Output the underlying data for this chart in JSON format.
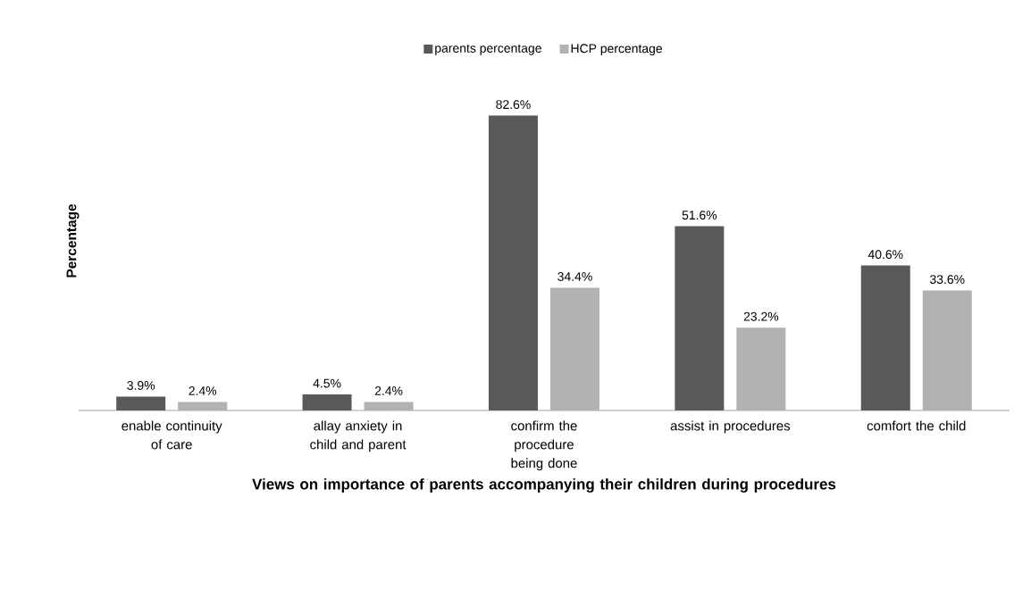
{
  "chart_data": {
    "type": "bar",
    "xlabel": "Views on importance of parents accompanying their children during procedures",
    "ylabel": "Percentage",
    "categories": [
      "enable continuity of care",
      "allay anxiety in child and parent",
      "confirm the procedure being done",
      "assist in procedures",
      "comfort the child"
    ],
    "series": [
      {
        "name": "parents percentage",
        "color": "#595959",
        "values": [
          3.9,
          4.5,
          82.6,
          51.6,
          40.6
        ],
        "value_labels": [
          "3.9%",
          "4.5%",
          "82.6%",
          "51.6%",
          "40.6%"
        ]
      },
      {
        "name": "HCP percentage",
        "color": "#b2b2b2",
        "values": [
          2.4,
          2.4,
          34.4,
          23.2,
          33.6
        ],
        "value_labels": [
          "2.4%",
          "2.4%",
          "34.4%",
          "23.2%",
          "33.6%"
        ]
      }
    ],
    "legend": "top"
  }
}
